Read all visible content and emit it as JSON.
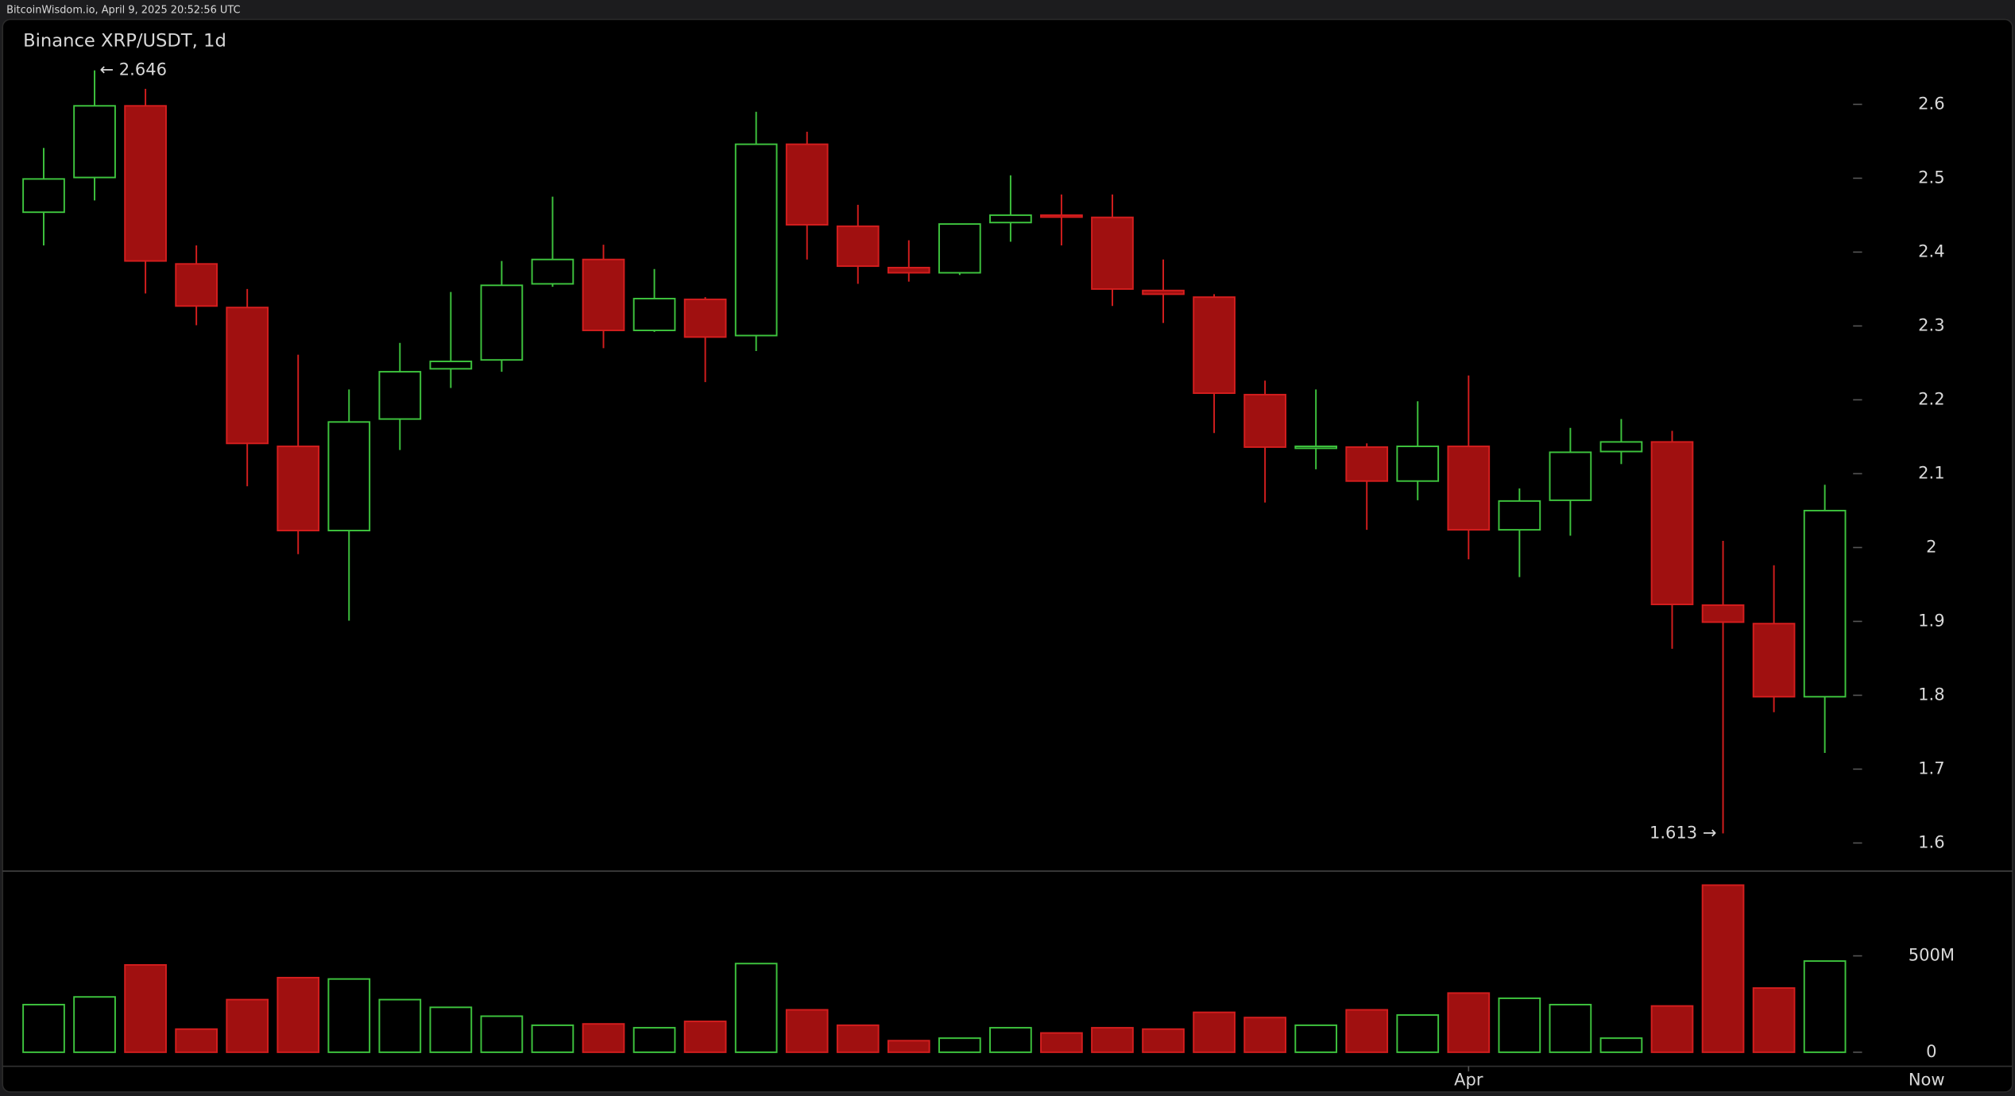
{
  "chart_data": {
    "type": "candlestick",
    "timestamp": "BitcoinWisdom.io, April 9, 2025 20:52:56 UTC",
    "title": "Binance XRP/USDT, 1d",
    "categories": [
      null,
      null,
      null,
      null,
      null,
      null,
      null,
      null,
      null,
      null,
      null,
      null,
      null,
      null,
      null,
      null,
      null,
      null,
      null,
      null,
      null,
      null,
      null,
      null,
      null,
      null,
      null,
      null,
      "Apr",
      null,
      null,
      null,
      null,
      null,
      null,
      null
    ],
    "x_end_label": "Now",
    "open": [
      2.454,
      2.501,
      2.598,
      2.384,
      2.325,
      2.137,
      2.023,
      2.174,
      2.242,
      2.254,
      2.357,
      2.39,
      2.294,
      2.336,
      2.287,
      2.546,
      2.435,
      2.379,
      2.372,
      2.44,
      2.45,
      2.447,
      2.348,
      2.339,
      2.207,
      2.135,
      2.136,
      2.09,
      2.137,
      2.024,
      2.064,
      2.13,
      2.143,
      1.922,
      1.897,
      1.798
    ],
    "high": [
      2.541,
      2.646,
      2.621,
      2.409,
      2.35,
      2.261,
      2.214,
      2.277,
      2.346,
      2.388,
      2.475,
      2.41,
      2.377,
      2.339,
      2.59,
      2.563,
      2.464,
      2.416,
      2.438,
      2.504,
      2.478,
      2.478,
      2.39,
      2.343,
      2.226,
      2.214,
      2.141,
      2.198,
      2.233,
      2.08,
      2.162,
      2.174,
      2.158,
      2.009,
      1.976,
      2.085
    ],
    "low": [
      2.409,
      2.47,
      2.344,
      2.301,
      2.083,
      1.991,
      1.901,
      2.132,
      2.216,
      2.238,
      2.353,
      2.27,
      2.292,
      2.224,
      2.266,
      2.39,
      2.357,
      2.36,
      2.369,
      2.414,
      2.409,
      2.327,
      2.304,
      2.155,
      2.061,
      2.106,
      2.024,
      2.064,
      1.984,
      1.96,
      2.016,
      2.113,
      1.863,
      1.613,
      1.777,
      1.722
    ],
    "close": [
      2.499,
      2.598,
      2.388,
      2.327,
      2.141,
      2.023,
      2.17,
      2.238,
      2.252,
      2.355,
      2.39,
      2.294,
      2.337,
      2.285,
      2.546,
      2.437,
      2.381,
      2.372,
      2.438,
      2.45,
      2.449,
      2.35,
      2.343,
      2.209,
      2.136,
      2.137,
      2.09,
      2.137,
      2.024,
      2.063,
      2.129,
      2.143,
      1.923,
      1.899,
      1.798,
      2.05
    ],
    "volume": [
      247,
      287,
      453,
      120,
      273,
      387,
      380,
      273,
      233,
      187,
      140,
      147,
      127,
      160,
      460,
      220,
      140,
      60,
      73,
      127,
      100,
      127,
      120,
      207,
      180,
      140,
      220,
      193,
      307,
      280,
      247,
      73,
      240,
      867,
      333,
      473
    ],
    "ylim": [
      1.562,
      2.715
    ],
    "yticks": [
      1.6,
      1.7,
      1.8,
      1.9,
      2,
      2.1,
      2.2,
      2.3,
      2.4,
      2.5,
      2.6
    ],
    "volume_ylim": [
      -73,
      940
    ],
    "volume_ticks": [
      0,
      {
        "value": 500,
        "label": "500M"
      }
    ],
    "high_label": {
      "value": 2.646,
      "label": "← 2.646"
    },
    "low_label": {
      "value": 1.613,
      "label": "1.613 →"
    },
    "up_color": "#3ec43e",
    "down_color": "#a01010",
    "down_stroke": "#d41e1e"
  }
}
